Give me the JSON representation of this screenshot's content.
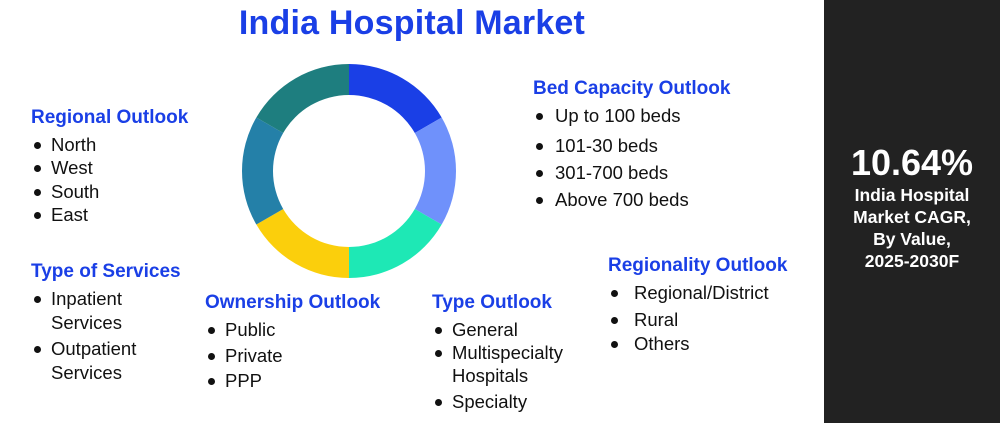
{
  "title": "India Hospital Market",
  "colors": {
    "title": "#1a3fe6",
    "sidebar_bg": "#222222",
    "donut_segments": [
      "#1a3fe6",
      "#6f91fb",
      "#1ee8b5",
      "#fbcf0c",
      "#2480a8",
      "#1e7e7f"
    ]
  },
  "sections": {
    "regional": {
      "heading": "Regional Outlook",
      "items": [
        "North",
        "West",
        "South",
        "East"
      ]
    },
    "services": {
      "heading": "Type of Services",
      "items": [
        "Inpatient Services",
        "Outpatient Services"
      ]
    },
    "ownership": {
      "heading": "Ownership Outlook",
      "items": [
        "Public",
        "Private",
        "PPP"
      ]
    },
    "type": {
      "heading": "Type Outlook",
      "items": [
        "General",
        "Multispecialty Hospitals",
        "Specialty"
      ]
    },
    "bed": {
      "heading": "Bed Capacity Outlook",
      "items": [
        "Up to 100 beds",
        "101-30 beds",
        "301-700 beds",
        "Above 700 beds"
      ]
    },
    "regionality": {
      "heading": "Regionality Outlook",
      "items": [
        "Regional/District",
        "Rural",
        "Others"
      ]
    }
  },
  "sidebar": {
    "cagr_value": "10.64%",
    "cagr_lines": [
      "India Hospital",
      "Market CAGR,",
      "By Value,",
      "2025-2030F"
    ]
  }
}
